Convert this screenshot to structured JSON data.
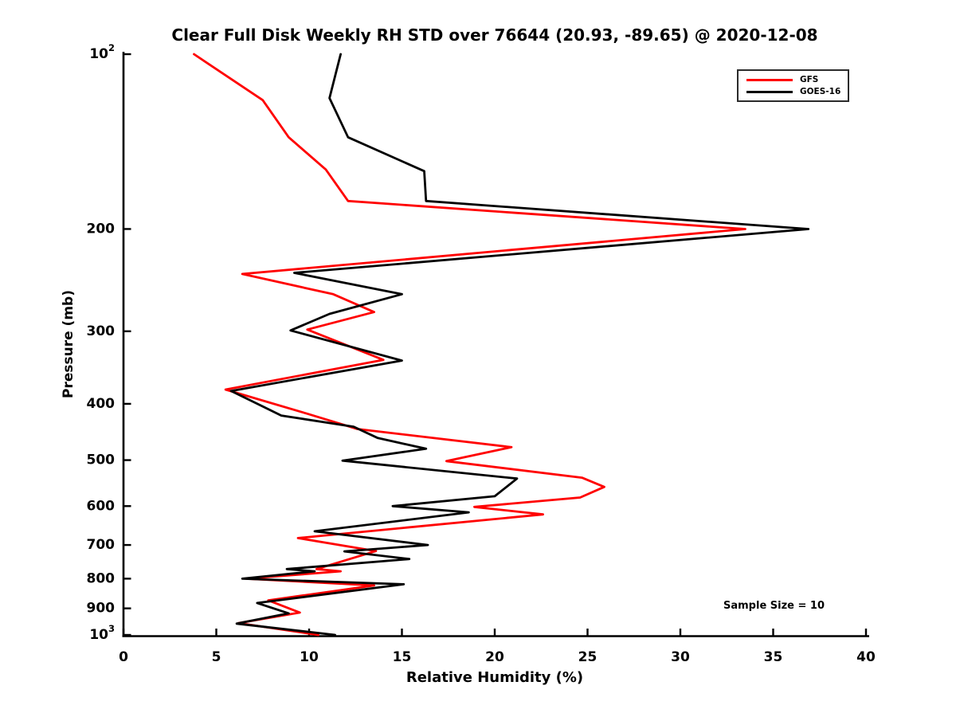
{
  "chart_data": {
    "type": "line",
    "title": "Clear Full Disk Weekly RH STD over 76644 (20.93, -89.65) @ 2020-12-08",
    "xlabel": "Relative Humidity (%)",
    "ylabel": "Pressure (mb)",
    "xlim": [
      0,
      40
    ],
    "ylim": [
      100,
      1000
    ],
    "y_scale": "log",
    "grid": false,
    "legend_position": "upper right",
    "annotation": "Sample Size = 10",
    "axis_color": "#000000",
    "x_ticks": [
      {
        "value": 0,
        "label": "0"
      },
      {
        "value": 5,
        "label": "5"
      },
      {
        "value": 10,
        "label": "10"
      },
      {
        "value": 15,
        "label": "15"
      },
      {
        "value": 20,
        "label": "20"
      },
      {
        "value": 25,
        "label": "25"
      },
      {
        "value": 30,
        "label": "30"
      },
      {
        "value": 35,
        "label": "35"
      },
      {
        "value": 40,
        "label": "40"
      }
    ],
    "y_ticks": [
      {
        "value": 100,
        "base": "10",
        "exponent": "2"
      },
      {
        "value": 200,
        "label": "200"
      },
      {
        "value": 300,
        "label": "300"
      },
      {
        "value": 400,
        "label": "400"
      },
      {
        "value": 500,
        "label": "500"
      },
      {
        "value": 600,
        "label": "600"
      },
      {
        "value": 700,
        "label": "700"
      },
      {
        "value": 800,
        "label": "800"
      },
      {
        "value": 900,
        "label": "900"
      },
      {
        "value": 1000,
        "base": "10",
        "exponent": "3"
      }
    ],
    "series": [
      {
        "name": "GFS",
        "color": "#ff0000",
        "points_format": "[relative_humidity_percent, pressure_mb]",
        "points": [
          [
            3.8,
            100
          ],
          [
            7.5,
            120
          ],
          [
            8.9,
            139
          ],
          [
            10.9,
            158
          ],
          [
            12.1,
            179
          ],
          [
            33.5,
            200
          ],
          [
            6.4,
            239
          ],
          [
            11.3,
            259
          ],
          [
            13.5,
            278
          ],
          [
            9.9,
            298
          ],
          [
            14.0,
            336
          ],
          [
            5.5,
            378
          ],
          [
            9.9,
            416
          ],
          [
            12.6,
            442
          ],
          [
            20.9,
            475
          ],
          [
            17.4,
            502
          ],
          [
            24.7,
            536
          ],
          [
            25.9,
            556
          ],
          [
            24.6,
            580
          ],
          [
            18.9,
            602
          ],
          [
            22.6,
            620
          ],
          [
            9.4,
            681
          ],
          [
            13.6,
            717
          ],
          [
            10.4,
            770
          ],
          [
            11.7,
            777
          ],
          [
            6.6,
            800
          ],
          [
            13.5,
            822
          ],
          [
            7.8,
            872
          ],
          [
            9.5,
            915
          ],
          [
            6.2,
            954
          ],
          [
            10.5,
            1000
          ]
        ]
      },
      {
        "name": "GOES-16",
        "color": "#000000",
        "points_format": "[relative_humidity_percent, pressure_mb]",
        "points": [
          [
            11.7,
            100
          ],
          [
            11.1,
            119
          ],
          [
            12.1,
            139
          ],
          [
            16.2,
            159
          ],
          [
            16.3,
            179
          ],
          [
            36.9,
            200
          ],
          [
            9.2,
            238
          ],
          [
            15.0,
            259
          ],
          [
            11.1,
            280
          ],
          [
            9.0,
            299
          ],
          [
            15.0,
            337
          ],
          [
            5.8,
            380
          ],
          [
            8.5,
            419
          ],
          [
            12.4,
            438
          ],
          [
            13.7,
            458
          ],
          [
            16.3,
            478
          ],
          [
            11.8,
            501
          ],
          [
            21.2,
            538
          ],
          [
            20.0,
            577
          ],
          [
            14.5,
            600
          ],
          [
            18.6,
            615
          ],
          [
            10.3,
            663
          ],
          [
            16.4,
            700
          ],
          [
            11.9,
            718
          ],
          [
            15.4,
            740
          ],
          [
            8.8,
            770
          ],
          [
            10.3,
            777
          ],
          [
            6.4,
            800
          ],
          [
            15.1,
            818
          ],
          [
            7.2,
            881
          ],
          [
            8.9,
            918
          ],
          [
            6.1,
            956
          ],
          [
            11.4,
            1000
          ]
        ]
      }
    ]
  }
}
